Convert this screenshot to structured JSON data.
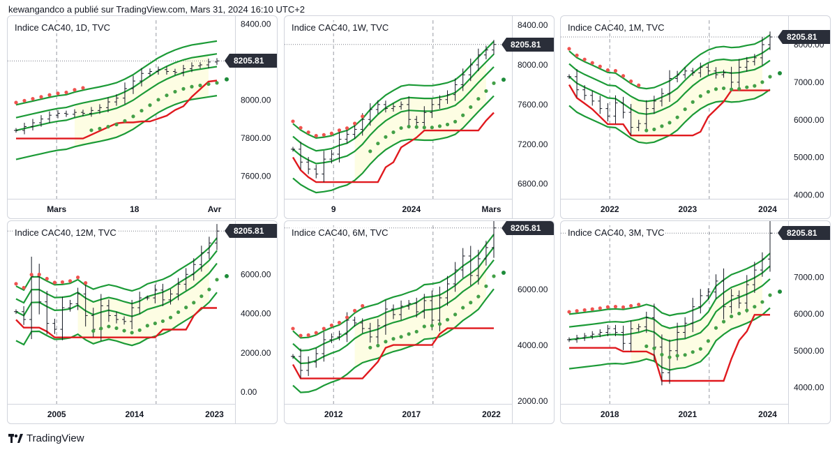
{
  "header": {
    "text": "kewangandco a publié sur TradingView.com, Mars 31, 2024 16:10 UTC+2"
  },
  "footer": {
    "brand": "TradingView"
  },
  "colors": {
    "band_green": "#1b9a36",
    "band_red": "#e0191e",
    "psar_green": "#43a047",
    "psar_red": "#ef5350",
    "fill": "#fdfde3",
    "candles": "#131722",
    "grid_dash": "#9598a1",
    "badge": "#2a2e39"
  },
  "last_price": "8205.81",
  "chart_data": [
    {
      "type": "ohlc_with_bands",
      "title": "Indice CAC40, 1D, TVC",
      "y_ticks": [
        "8400.00",
        "8200.00",
        "8000.00",
        "7800.00",
        "7600.00"
      ],
      "y_tick_values": [
        8400,
        8200,
        8000,
        7800,
        7600
      ],
      "x_ticks": [
        "Mars",
        "18",
        "Avr"
      ],
      "ylim": [
        7480,
        8420
      ],
      "close_series": [
        7840,
        7860,
        7880,
        7900,
        7920,
        7930,
        7925,
        7935,
        7930,
        7945,
        7960,
        7990,
        8010,
        8060,
        8100,
        8140,
        8150,
        8160,
        8150,
        8145,
        8165,
        8180,
        8185,
        8200,
        8205.81
      ],
      "last_price": 8205.81
    },
    {
      "type": "ohlc_with_bands",
      "title": "Indice CAC40, 1W, TVC",
      "y_ticks": [
        "8400.00",
        "8000.00",
        "7600.00",
        "7200.00",
        "6800.00"
      ],
      "y_tick_values": [
        8400,
        8000,
        7600,
        7200,
        6800
      ],
      "x_ticks": [
        "9",
        "2024",
        "Mars"
      ],
      "ylim": [
        6650,
        8450
      ],
      "close_series": [
        7150,
        7020,
        6950,
        6900,
        7050,
        7100,
        7250,
        7300,
        7350,
        7450,
        7550,
        7600,
        7560,
        7580,
        7600,
        7450,
        7420,
        7520,
        7600,
        7650,
        7700,
        7800,
        7900,
        8000,
        8100,
        8150,
        8205.81
      ],
      "last_price": 8205.81
    },
    {
      "type": "ohlc_with_bands",
      "title": "Indice CAC40, 1M, TVC",
      "y_ticks": [
        "8000.00",
        "7000.00",
        "6000.00",
        "5000.00",
        "4000.00"
      ],
      "y_tick_values": [
        8000,
        7000,
        6000,
        5000,
        4000
      ],
      "x_ticks": [
        "2022",
        "2023",
        "2024"
      ],
      "ylim": [
        3900,
        8650
      ],
      "close_series": [
        7150,
        6800,
        6650,
        6500,
        6300,
        6100,
        6450,
        6200,
        5800,
        5900,
        6300,
        6500,
        6700,
        7100,
        7200,
        7300,
        7250,
        7400,
        7300,
        7200,
        7250,
        7000,
        7400,
        7550,
        7650,
        8000,
        8205.81
      ],
      "last_price": 8205.81
    },
    {
      "type": "ohlc_with_bands",
      "title": "Indice CAC40, 12M, TVC",
      "y_ticks": [
        "6000.00",
        "4000.00",
        "2000.00",
        "0.00"
      ],
      "y_tick_values": [
        6000,
        4000,
        2000,
        0
      ],
      "x_ticks": [
        "2005",
        "2014",
        "2023"
      ],
      "ylim": [
        -600,
        8500
      ],
      "close_series": [
        4100,
        3700,
        5900,
        4600,
        3500,
        3200,
        4300,
        4500,
        5000,
        3900,
        3200,
        4400,
        3900,
        3700,
        3600,
        4300,
        4800,
        4800,
        5200,
        4700,
        5000,
        5500,
        6000,
        6500,
        7100,
        7600,
        8205.81
      ],
      "last_price": 8205.81
    },
    {
      "type": "ohlc_with_bands",
      "title": "Indice CAC40, 6M, TVC",
      "y_ticks": [
        "6000.00",
        "4000.00",
        "2000.00"
      ],
      "y_tick_values": [
        6000,
        4000,
        2000
      ],
      "x_ticks": [
        "2012",
        "2017",
        "2022"
      ],
      "ylim": [
        1900,
        8300
      ],
      "close_series": [
        3600,
        3100,
        3400,
        3700,
        4200,
        4300,
        4400,
        4900,
        4800,
        4600,
        4300,
        4700,
        5300,
        5100,
        5400,
        5500,
        5200,
        5600,
        4900,
        5700,
        6200,
        6700,
        7200,
        6500,
        7100,
        7500,
        8205.81
      ],
      "last_price": 8205.81
    },
    {
      "type": "ohlc_with_bands",
      "title": "Indice CAC40, 3M, TVC",
      "y_ticks": [
        "7000.00",
        "6000.00",
        "5000.00",
        "4000.00"
      ],
      "y_tick_values": [
        7000,
        6000,
        5000,
        4000
      ],
      "x_ticks": [
        "2018",
        "2021",
        "2024"
      ],
      "ylim": [
        3550,
        8420
      ],
      "close_series": [
        5300,
        5350,
        5400,
        5450,
        5500,
        5600,
        5500,
        5200,
        5600,
        5650,
        5900,
        5100,
        4400,
        5000,
        5500,
        5750,
        6200,
        6500,
        6600,
        6900,
        6200,
        6500,
        6300,
        6800,
        7200,
        7500,
        8205.81
      ],
      "last_price": 8205.81
    }
  ]
}
